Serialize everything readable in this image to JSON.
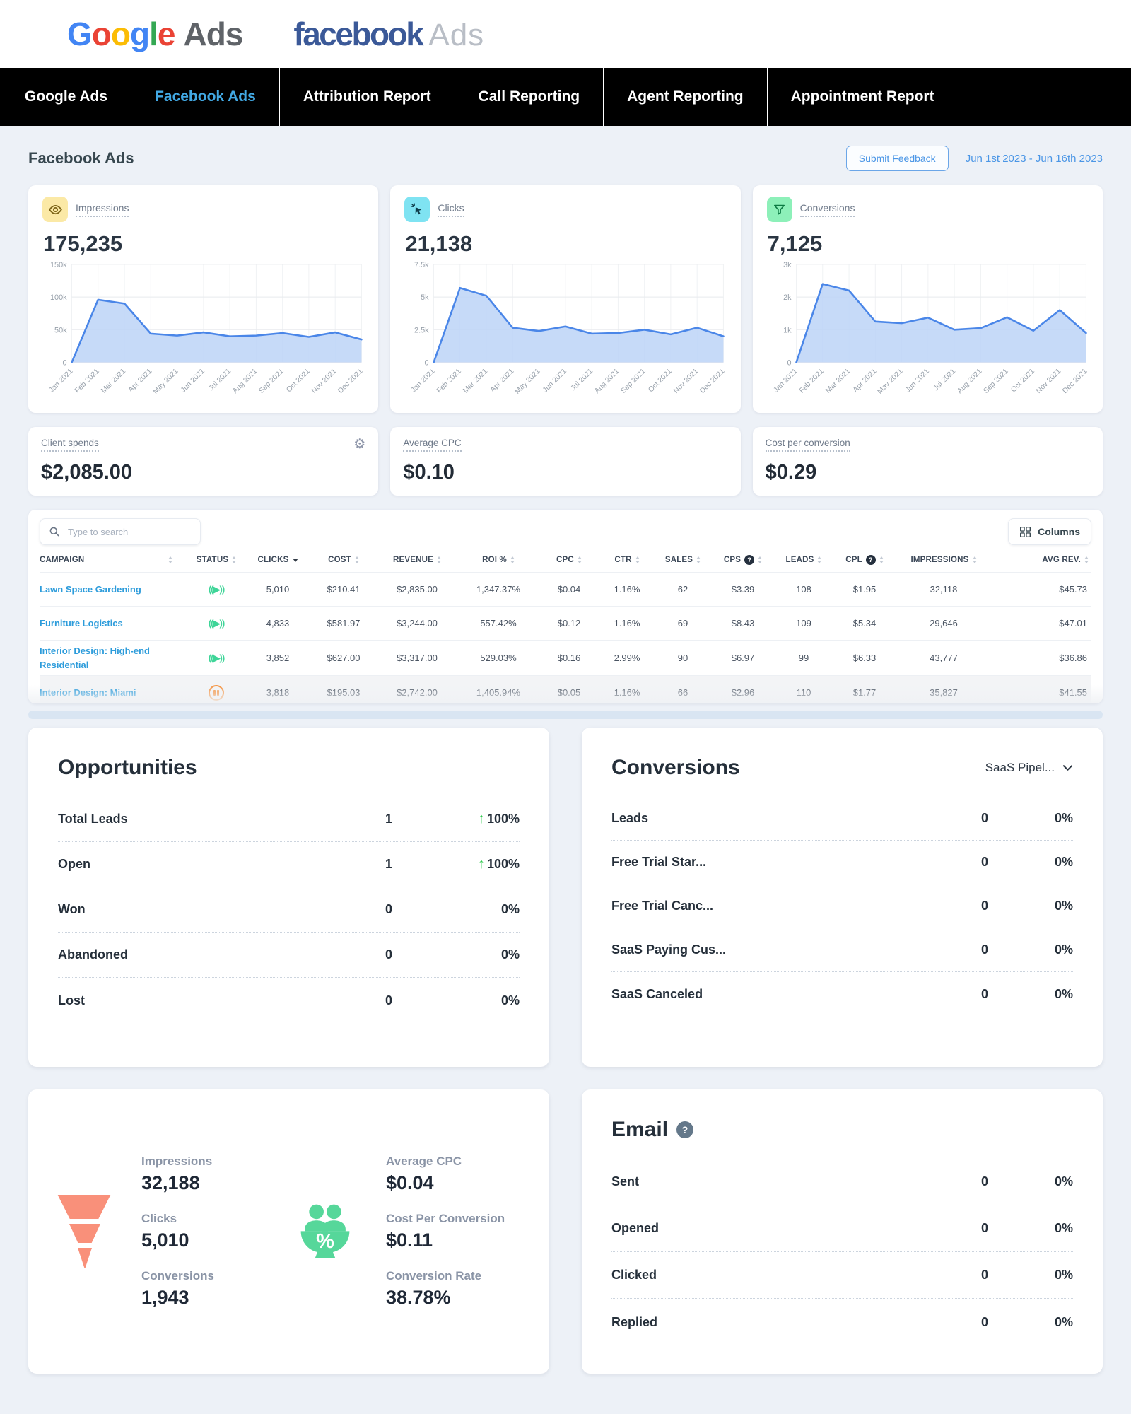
{
  "logos": {
    "google_letters": [
      {
        "ch": "G",
        "color": "#4285F4"
      },
      {
        "ch": "o",
        "color": "#EA4335"
      },
      {
        "ch": "o",
        "color": "#FBBC05"
      },
      {
        "ch": "g",
        "color": "#4285F4"
      },
      {
        "ch": "l",
        "color": "#34A853"
      },
      {
        "ch": "e",
        "color": "#EA4335"
      }
    ],
    "google_suffix": "Ads",
    "facebook_word": "facebook",
    "facebook_suffix": "Ads"
  },
  "nav": {
    "tabs": [
      {
        "label": "Google Ads",
        "active": false
      },
      {
        "label": "Facebook Ads",
        "active": true
      },
      {
        "label": "Attribution Report",
        "active": false
      },
      {
        "label": "Call Reporting",
        "active": false
      },
      {
        "label": "Agent Reporting",
        "active": false
      },
      {
        "label": "Appointment Report",
        "active": false
      }
    ]
  },
  "header": {
    "title": "Facebook Ads",
    "feedback_button": "Submit Feedback",
    "date_range": "Jun 1st 2023 - Jun 16th 2023"
  },
  "metric_cards": [
    {
      "label": "Impressions",
      "value": "175,235",
      "icon": "eye-icon",
      "chip_bg": "#fbe9a6"
    },
    {
      "label": "Clicks",
      "value": "21,138",
      "icon": "cursor-click-icon",
      "chip_bg": "#7fe3f2"
    },
    {
      "label": "Conversions",
      "value": "7,125",
      "icon": "funnel-filter-icon",
      "chip_bg": "#8df0b9"
    }
  ],
  "chart_data": [
    {
      "type": "area",
      "name": "impressions",
      "title": "Impressions",
      "x": [
        "Jan 2021",
        "Feb 2021",
        "Mar 2021",
        "Apr 2021",
        "May 2021",
        "Jun 2021",
        "Jul 2021",
        "Aug 2021",
        "Sep 2021",
        "Oct 2021",
        "Nov 2021",
        "Dec 2021"
      ],
      "values": [
        0,
        96000,
        90000,
        44000,
        41000,
        46000,
        40000,
        41000,
        45000,
        39000,
        46000,
        35000
      ],
      "ylim": [
        0,
        150000
      ],
      "yticks": [
        {
          "v": 0,
          "label": "0"
        },
        {
          "v": 50000,
          "label": "50k"
        },
        {
          "v": 100000,
          "label": "100k"
        },
        {
          "v": 150000,
          "label": "150k"
        }
      ],
      "line_color": "#4a86e8",
      "fill_color": "#bcd4f7",
      "grid": true,
      "legend": "none",
      "xlabel": "",
      "ylabel": ""
    },
    {
      "type": "area",
      "name": "clicks",
      "title": "Clicks",
      "x": [
        "Jan 2021",
        "Feb 2021",
        "Mar 2021",
        "Apr 2021",
        "May 2021",
        "Jun 2021",
        "Jul 2021",
        "Aug 2021",
        "Sep 2021",
        "Oct 2021",
        "Nov 2021",
        "Dec 2021"
      ],
      "values": [
        0,
        5700,
        5100,
        2650,
        2400,
        2750,
        2200,
        2250,
        2500,
        2150,
        2650,
        2000
      ],
      "ylim": [
        0,
        7500
      ],
      "yticks": [
        {
          "v": 0,
          "label": "0"
        },
        {
          "v": 2500,
          "label": "2.5k"
        },
        {
          "v": 5000,
          "label": "5k"
        },
        {
          "v": 7500,
          "label": "7.5k"
        }
      ],
      "line_color": "#4a86e8",
      "fill_color": "#bcd4f7",
      "grid": true,
      "legend": "none",
      "xlabel": "",
      "ylabel": ""
    },
    {
      "type": "area",
      "name": "conversions",
      "title": "Conversions",
      "x": [
        "Jan 2021",
        "Feb 2021",
        "Mar 2021",
        "Apr 2021",
        "May 2021",
        "Jun 2021",
        "Jul 2021",
        "Aug 2021",
        "Sep 2021",
        "Oct 2021",
        "Nov 2021",
        "Dec 2021"
      ],
      "values": [
        0,
        2400,
        2200,
        1250,
        1200,
        1370,
        1000,
        1050,
        1380,
        970,
        1600,
        900
      ],
      "ylim": [
        0,
        3000
      ],
      "yticks": [
        {
          "v": 0,
          "label": "0"
        },
        {
          "v": 1000,
          "label": "1k"
        },
        {
          "v": 2000,
          "label": "2k"
        },
        {
          "v": 3000,
          "label": "3k"
        }
      ],
      "line_color": "#4a86e8",
      "fill_color": "#bcd4f7",
      "grid": true,
      "legend": "none",
      "xlabel": "",
      "ylabel": ""
    }
  ],
  "stat_cards": [
    {
      "label": "Client spends",
      "value": "$2,085.00",
      "gear": true
    },
    {
      "label": "Average CPC",
      "value": "$0.10",
      "gear": false
    },
    {
      "label": "Cost per conversion",
      "value": "$0.29",
      "gear": false
    }
  ],
  "table": {
    "search_placeholder": "Type to search",
    "columns_button": "Columns",
    "headers": [
      {
        "label": "CAMPAIGN",
        "sorted": ""
      },
      {
        "label": "STATUS",
        "sorted": ""
      },
      {
        "label": "CLICKS",
        "sorted": "desc"
      },
      {
        "label": "COST",
        "sorted": ""
      },
      {
        "label": "REVENUE",
        "sorted": ""
      },
      {
        "label": "ROI %",
        "sorted": ""
      },
      {
        "label": "CPC",
        "sorted": ""
      },
      {
        "label": "CTR",
        "sorted": ""
      },
      {
        "label": "SALES",
        "sorted": ""
      },
      {
        "label": "CPS",
        "sorted": "",
        "help": true
      },
      {
        "label": "LEADS",
        "sorted": ""
      },
      {
        "label": "CPL",
        "sorted": "",
        "help": true
      },
      {
        "label": "IMPRESSIONS",
        "sorted": ""
      },
      {
        "label": "AVG REV.",
        "sorted": ""
      }
    ],
    "rows": [
      {
        "campaign": "Lawn Space Gardening",
        "status": "active",
        "muted": false,
        "cells": [
          "5,010",
          "$210.41",
          "$2,835.00",
          "1,347.37%",
          "$0.04",
          "1.16%",
          "62",
          "$3.39",
          "108",
          "$1.95",
          "32,118",
          "$45.73"
        ]
      },
      {
        "campaign": "Furniture Logistics",
        "status": "active",
        "muted": false,
        "cells": [
          "4,833",
          "$581.97",
          "$3,244.00",
          "557.42%",
          "$0.12",
          "1.16%",
          "69",
          "$8.43",
          "109",
          "$5.34",
          "29,646",
          "$47.01"
        ]
      },
      {
        "campaign": "Interior Design: High-end Residential",
        "status": "active",
        "muted": false,
        "cells": [
          "3,852",
          "$627.00",
          "$3,317.00",
          "529.03%",
          "$0.16",
          "2.99%",
          "90",
          "$6.97",
          "99",
          "$6.33",
          "43,777",
          "$36.86"
        ]
      },
      {
        "campaign": "Interior Design: Miami",
        "status": "paused",
        "muted": true,
        "cells": [
          "3,818",
          "$195.03",
          "$2,742.00",
          "1,405.94%",
          "$0.05",
          "1.16%",
          "66",
          "$2.96",
          "110",
          "$1.77",
          "35,827",
          "$41.55"
        ]
      }
    ]
  },
  "opportunities": {
    "title": "Opportunities",
    "rows": [
      {
        "label": "Total Leads",
        "value": "1",
        "pct": "100%",
        "up": true
      },
      {
        "label": "Open",
        "value": "1",
        "pct": "100%",
        "up": true
      },
      {
        "label": "Won",
        "value": "0",
        "pct": "0%",
        "up": false
      },
      {
        "label": "Abandoned",
        "value": "0",
        "pct": "0%",
        "up": false
      },
      {
        "label": "Lost",
        "value": "0",
        "pct": "0%",
        "up": false
      }
    ]
  },
  "conversions_panel": {
    "title": "Conversions",
    "selector": "SaaS Pipel...",
    "rows": [
      {
        "label": "Leads",
        "value": "0",
        "pct": "0%",
        "up": false
      },
      {
        "label": "Free Trial Star...",
        "value": "0",
        "pct": "0%",
        "up": false
      },
      {
        "label": "Free Trial Canc...",
        "value": "0",
        "pct": "0%",
        "up": false
      },
      {
        "label": "SaaS Paying Cus...",
        "value": "0",
        "pct": "0%",
        "up": false
      },
      {
        "label": "SaaS Canceled",
        "value": "0",
        "pct": "0%",
        "up": false
      }
    ]
  },
  "funnel_panel": {
    "left_stats": [
      {
        "label": "Impressions",
        "value": "32,188"
      },
      {
        "label": "Clicks",
        "value": "5,010"
      },
      {
        "label": "Conversions",
        "value": "1,943"
      }
    ],
    "right_stats": [
      {
        "label": "Average CPC",
        "value": "$0.04"
      },
      {
        "label": "Cost Per Conversion",
        "value": "$0.11"
      },
      {
        "label": "Conversion Rate",
        "value": "38.78%"
      }
    ]
  },
  "email_panel": {
    "title": "Email",
    "rows": [
      {
        "label": "Sent",
        "value": "0",
        "pct": "0%",
        "up": false
      },
      {
        "label": "Opened",
        "value": "0",
        "pct": "0%",
        "up": false
      },
      {
        "label": "Clicked",
        "value": "0",
        "pct": "0%",
        "up": false
      },
      {
        "label": "Replied",
        "value": "0",
        "pct": "0%",
        "up": false
      }
    ]
  },
  "colors": {
    "nav_active": "#42a9e4",
    "campaign_link": "#2d9cdb",
    "status_active": "#3ed598",
    "status_paused": "#f5923e",
    "chart_line": "#4a86e8",
    "chart_fill": "#bcd4f7",
    "positive_green": "#2fc94e",
    "funnel_orange": "#f9907a",
    "people_icon_green": "#56d79a",
    "background": "#edf1f7"
  }
}
